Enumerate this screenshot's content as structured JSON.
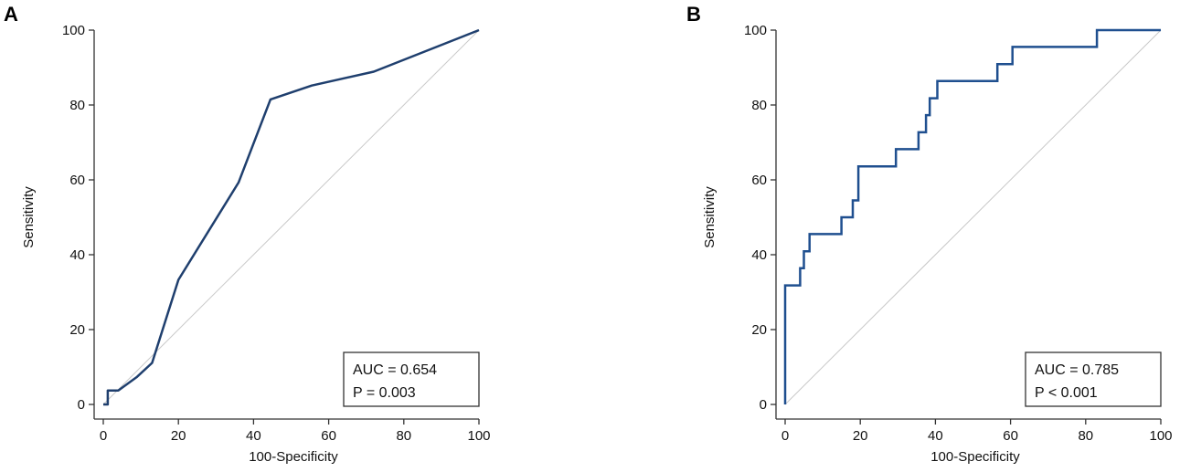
{
  "chart_data": [
    {
      "panel": "A",
      "type": "line",
      "title": "",
      "xlabel": "100-Specificity",
      "ylabel": "Sensitivity",
      "xlim": [
        0,
        100
      ],
      "ylim": [
        0,
        100
      ],
      "xticks": [
        0,
        20,
        40,
        60,
        80,
        100
      ],
      "yticks": [
        0,
        20,
        40,
        60,
        80,
        100
      ],
      "step": false,
      "series": [
        {
          "name": "ROC",
          "color": "#1f3f6e",
          "x": [
            0,
            1.2,
            1.2,
            4,
            9,
            13,
            20,
            36,
            44.5,
            55.5,
            72,
            100
          ],
          "y": [
            0,
            0,
            3.7,
            3.7,
            7.4,
            11.1,
            33.3,
            59.3,
            81.5,
            85.2,
            88.9,
            100
          ]
        }
      ],
      "reference_line": {
        "x": [
          0,
          100
        ],
        "y": [
          0,
          100
        ],
        "color": "#c8c8c8"
      },
      "stats": {
        "line1": "AUC = 0.654",
        "line2": "P = 0.003"
      }
    },
    {
      "panel": "B",
      "type": "line",
      "title": "",
      "xlabel": "100-Specificity",
      "ylabel": "Sensitivity",
      "xlim": [
        0,
        100
      ],
      "ylim": [
        0,
        100
      ],
      "xticks": [
        0,
        20,
        40,
        60,
        80,
        100
      ],
      "yticks": [
        0,
        20,
        40,
        60,
        80,
        100
      ],
      "step": true,
      "series": [
        {
          "name": "ROC",
          "color": "#1f4f8f",
          "x": [
            0,
            0,
            4,
            4,
            5,
            5,
            6.5,
            6.5,
            15,
            15,
            18,
            18,
            19.5,
            19.5,
            29.5,
            29.5,
            35.5,
            35.5,
            37.5,
            37.5,
            38.5,
            38.5,
            40.5,
            40.5,
            56.5,
            56.5,
            60.5,
            60.5,
            83,
            83,
            100
          ],
          "y": [
            0,
            31.8,
            31.8,
            36.4,
            36.4,
            40.9,
            40.9,
            45.5,
            45.5,
            50,
            50,
            54.5,
            54.5,
            63.6,
            63.6,
            68.2,
            68.2,
            72.7,
            72.7,
            77.3,
            77.3,
            81.8,
            81.8,
            86.4,
            86.4,
            90.9,
            90.9,
            95.5,
            95.5,
            100,
            100
          ]
        }
      ],
      "reference_line": {
        "x": [
          0,
          100
        ],
        "y": [
          0,
          100
        ],
        "color": "#c8c8c8"
      },
      "stats": {
        "line1": "AUC = 0.785",
        "line2": "P < 0.001"
      }
    }
  ]
}
